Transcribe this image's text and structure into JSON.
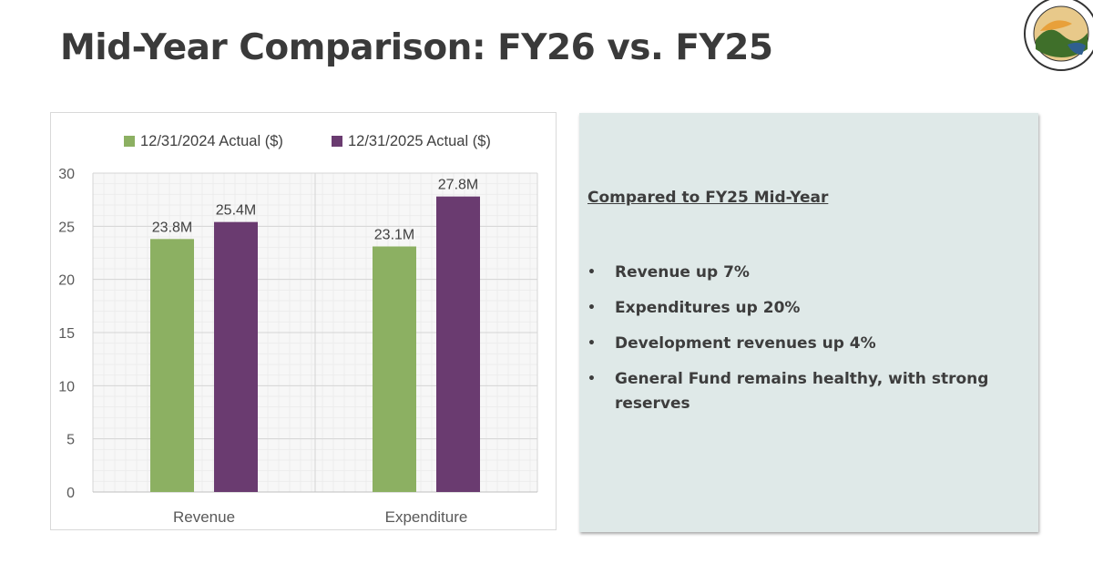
{
  "slide": {
    "title": "Mid-Year Comparison: FY26 vs. FY25"
  },
  "seal": {
    "icon": "city-seal-icon",
    "colors": [
      "#3f6f2a",
      "#e8a03a",
      "#2f5f8f"
    ]
  },
  "panel": {
    "heading": "Compared to FY25 Mid-Year",
    "bullets": [
      "Revenue up 7%",
      "Expenditures up 20%",
      "Development revenues up 4%",
      "General Fund remains healthy, with strong reserves"
    ],
    "background": "#dfe9e8"
  },
  "chart_data": {
    "type": "bar",
    "categories": [
      "Revenue",
      "Expenditure"
    ],
    "series": [
      {
        "name": "12/31/2024 Actual ($)",
        "values": [
          23.8,
          23.1
        ],
        "labels": [
          "23.8M",
          "23.1M"
        ],
        "color": "#8cb062"
      },
      {
        "name": "12/31/2025 Actual ($)",
        "values": [
          25.4,
          27.8
        ],
        "labels": [
          "25.4M",
          "27.8M"
        ],
        "color": "#6a3b70"
      }
    ],
    "ylim": [
      0,
      30
    ],
    "yticks": [
      "0",
      "5",
      "10",
      "15",
      "20",
      "25",
      "30"
    ],
    "grid": true,
    "legend": "top"
  }
}
